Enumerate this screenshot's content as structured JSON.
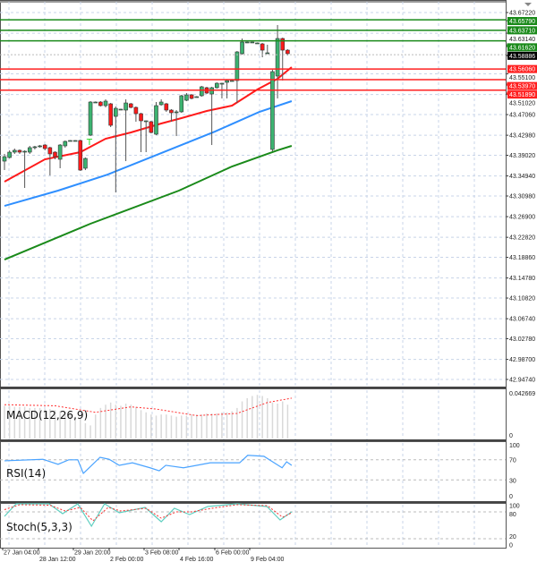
{
  "chart_data": {
    "type": "candlestick",
    "price_axis_labels": [
      "43.67220",
      "43.63140",
      "43.55100",
      "43.51020",
      "43.47060",
      "43.42980",
      "43.39020",
      "43.34940",
      "43.30980",
      "43.26900",
      "43.22820",
      "43.18860",
      "43.14780",
      "43.10820",
      "43.06740",
      "43.02780",
      "42.98700",
      "42.94740"
    ],
    "ylim": [
      42.9474,
      43.6722
    ],
    "time_labels": [
      "27 Jan 04:00",
      "28 Jan 12:00",
      "29 Jan 20:00",
      "2 Feb 00:00",
      "3 Feb 08:00",
      "4 Feb 16:00",
      "6 Feb 00:00",
      "9 Feb 04:00"
    ],
    "candles": [
      [
        43.3787,
        43.3929,
        43.361,
        43.3875
      ],
      [
        43.3858,
        43.4,
        43.384,
        43.3964
      ],
      [
        43.3964,
        43.4035,
        43.3929,
        43.4
      ],
      [
        43.4,
        43.4017,
        43.3929,
        43.3964
      ],
      [
        43.3964,
        43.4,
        43.3257,
        43.3982
      ],
      [
        43.3964,
        43.4088,
        43.3929,
        43.4053
      ],
      [
        43.4053,
        43.4088,
        43.4017,
        43.407
      ],
      [
        43.407,
        43.4105,
        43.4053,
        43.4088
      ],
      [
        43.4105,
        43.4123,
        43.4,
        43.4035
      ],
      [
        43.4053,
        43.407,
        43.3504,
        43.3929
      ],
      [
        43.3964,
        43.3982,
        43.3823,
        43.3875
      ],
      [
        43.3823,
        43.4123,
        43.3646,
        43.4105
      ],
      [
        43.4088,
        43.4194,
        43.4053,
        43.4176
      ],
      [
        43.4194,
        43.42,
        43.4185,
        43.4194
      ],
      [
        43.4194,
        43.42,
        43.4185,
        43.4194
      ],
      [
        43.4194,
        43.4212,
        43.3593,
        43.361
      ],
      [
        43.3646,
        43.3858,
        43.361,
        43.384
      ],
      [
        43.43,
        43.4972,
        43.4282,
        43.4954
      ],
      [
        43.4954,
        43.4965,
        43.4945,
        43.4954
      ],
      [
        43.4954,
        43.4972,
        43.4866,
        43.4883
      ],
      [
        43.4883,
        43.5007,
        43.4848,
        43.4972
      ],
      [
        43.4919,
        43.4936,
        43.4459,
        43.4494
      ],
      [
        43.4671,
        43.4866,
        43.3168,
        43.483
      ],
      [
        43.4813,
        43.482,
        43.48,
        43.4813
      ],
      [
        43.4795,
        43.5007,
        43.3787,
        43.4936
      ],
      [
        43.4919,
        43.4936,
        43.483,
        43.4848
      ],
      [
        43.4848,
        43.4866,
        43.4565,
        43.4724
      ],
      [
        43.4724,
        43.4742,
        43.3964,
        43.4583
      ],
      [
        43.4583,
        43.459,
        43.3964,
        43.4583
      ],
      [
        43.4565,
        43.4583,
        43.4335,
        43.4353
      ],
      [
        43.4318,
        43.4954,
        43.43,
        43.4883
      ],
      [
        43.4901,
        43.5007,
        43.4883,
        43.4954
      ],
      [
        43.4919,
        43.4936,
        43.476,
        43.4795
      ],
      [
        43.4795,
        43.4813,
        43.4565,
        43.4742
      ],
      [
        43.4742,
        43.4795,
        43.4282,
        43.476
      ],
      [
        43.476,
        43.5095,
        43.4742,
        43.5078
      ],
      [
        43.4989,
        43.5131,
        43.4972,
        43.5095
      ],
      [
        43.5095,
        43.5113,
        43.5007,
        43.5025
      ],
      [
        43.506,
        43.507,
        43.505,
        43.506
      ],
      [
        43.5078,
        43.5272,
        43.506,
        43.5255
      ],
      [
        43.5237,
        43.5255,
        43.5113,
        43.5131
      ],
      [
        43.5113,
        43.5255,
        43.4105,
        43.5237
      ],
      [
        43.5237,
        43.5343,
        43.522,
        43.5325
      ],
      [
        43.5325,
        43.5335,
        43.5025,
        43.5325
      ],
      [
        43.5343,
        43.5396,
        43.5025,
        43.5378
      ],
      [
        43.5378,
        43.5385,
        43.537,
        43.5378
      ],
      [
        43.5378,
        43.5962,
        43.4936,
        43.5944
      ],
      [
        43.5909,
        43.6209,
        43.5891,
        43.6139
      ],
      [
        43.6139,
        43.6145,
        43.613,
        43.6139
      ],
      [
        43.6139,
        43.6145,
        43.613,
        43.6139
      ],
      [
        43.6121,
        43.613,
        43.611,
        43.6121
      ],
      [
        43.6103,
        43.6121,
        43.5838,
        43.5979
      ],
      [
        43.5926,
        43.6086,
        43.5909,
        43.5926
      ],
      [
        43.4017,
        43.5591,
        43.3982,
        43.5555
      ],
      [
        43.5467,
        43.6475,
        43.5025,
        43.6209
      ],
      [
        43.6209,
        43.6226,
        43.5378,
        43.5979
      ],
      [
        43.5979,
        43.5997,
        43.5873,
        43.5909
      ]
    ],
    "moving_averages": [
      {
        "color": "#ff1a1a",
        "points": [
          [
            0,
            43.338
          ],
          [
            8,
            43.3822
          ],
          [
            15,
            43.3964
          ],
          [
            20,
            43.4229
          ],
          [
            25,
            43.4353
          ],
          [
            31,
            43.453
          ],
          [
            35,
            43.4636
          ],
          [
            40,
            43.4777
          ],
          [
            45,
            43.4883
          ],
          [
            50,
            43.5202
          ],
          [
            54,
            43.5414
          ],
          [
            56.8,
            43.5644
          ]
        ]
      },
      {
        "color": "#2f8fff",
        "points": [
          [
            0,
            43.2903
          ],
          [
            10.6,
            43.3204
          ],
          [
            20.4,
            43.3522
          ],
          [
            31,
            43.3946
          ],
          [
            41.6,
            43.437
          ],
          [
            50.4,
            43.4759
          ],
          [
            56.8,
            43.4972
          ]
        ]
      },
      {
        "color": "#1a8a1a",
        "points": [
          [
            0,
            43.1842
          ],
          [
            17,
            43.255
          ],
          [
            34.5,
            43.3204
          ],
          [
            45,
            43.3681
          ],
          [
            54,
            43.4
          ],
          [
            56.8,
            43.4088
          ]
        ]
      }
    ],
    "levels": [
      {
        "price": "43.65790",
        "color": "#1a8a1a"
      },
      {
        "price": "43.63710",
        "color": "#1a8a1a"
      },
      {
        "price": "43.61620",
        "color": "#1a8a1a"
      },
      {
        "price": "43.56060",
        "color": "#ff2020"
      },
      {
        "price": "43.53970",
        "color": "#ff2020"
      },
      {
        "price": "43.51890",
        "color": "#ff2020"
      }
    ],
    "current_price": "43.58886",
    "signal_marker": {
      "index": 16.8,
      "price": 43.4176,
      "glyph": "T"
    },
    "macd": {
      "label": "MACD(12,26,9)",
      "max_label": "0.042669",
      "zero_label": "0",
      "max": 0.042669,
      "histogram": [
        0.03,
        0.03,
        0.029,
        0.029,
        0.029,
        0.028,
        0.028,
        0.028,
        0.027,
        0.027,
        0.026,
        0.025,
        0.024,
        0.022,
        0.02,
        0.018,
        0.014,
        0.012,
        0.022,
        0.028,
        0.031,
        0.033,
        0.031,
        0.03,
        0.032,
        0.031,
        0.029,
        0.026,
        0.024,
        0.022,
        0.021,
        0.022,
        0.022,
        0.021,
        0.02,
        0.021,
        0.021,
        0.022,
        0.022,
        0.022,
        0.023,
        0.023,
        0.023,
        0.024,
        0.024,
        0.025,
        0.028,
        0.034,
        0.037,
        0.039,
        0.04,
        0.039,
        0.037,
        0.033,
        0.032,
        0.034,
        0.031
      ],
      "signal": [
        [
          0,
          0.031
        ],
        [
          10,
          0.03
        ],
        [
          18,
          0.024
        ],
        [
          25,
          0.029
        ],
        [
          30,
          0.027
        ],
        [
          38,
          0.021
        ],
        [
          46,
          0.023
        ],
        [
          52,
          0.033
        ],
        [
          56.8,
          0.037
        ]
      ]
    },
    "rsi": {
      "label": "RSI(14)",
      "levels": [
        "100",
        "70",
        "30",
        "0"
      ],
      "points": [
        [
          0,
          68
        ],
        [
          7.6,
          71
        ],
        [
          10.6,
          61
        ],
        [
          12.7,
          70
        ],
        [
          14.5,
          70
        ],
        [
          15.6,
          43
        ],
        [
          18.9,
          75
        ],
        [
          20.7,
          71
        ],
        [
          22.7,
          59
        ],
        [
          25.3,
          64
        ],
        [
          28.8,
          54
        ],
        [
          30.6,
          48
        ],
        [
          31.9,
          59
        ],
        [
          35.4,
          54
        ],
        [
          40.7,
          64
        ],
        [
          46.5,
          64
        ],
        [
          48.1,
          79
        ],
        [
          51.3,
          77
        ],
        [
          54.9,
          54
        ],
        [
          55.8,
          66
        ],
        [
          56.8,
          59
        ]
      ]
    },
    "stoch": {
      "label": "Stoch(5,3,3)",
      "levels": [
        "100",
        "80",
        "20",
        "0"
      ],
      "main": [
        [
          0,
          70
        ],
        [
          2.3,
          98
        ],
        [
          8.8,
          98
        ],
        [
          11.5,
          76
        ],
        [
          14.5,
          98
        ],
        [
          17.2,
          48
        ],
        [
          19.8,
          98
        ],
        [
          22.7,
          78
        ],
        [
          27.8,
          90
        ],
        [
          31,
          58
        ],
        [
          33.6,
          88
        ],
        [
          36.6,
          74
        ],
        [
          40.2,
          92
        ],
        [
          46,
          98
        ],
        [
          51.9,
          92
        ],
        [
          54.5,
          62
        ],
        [
          56.8,
          80
        ]
      ],
      "signal": [
        [
          0,
          85
        ],
        [
          3,
          96
        ],
        [
          9,
          95
        ],
        [
          12,
          82
        ],
        [
          15,
          90
        ],
        [
          17.5,
          60
        ],
        [
          20.5,
          90
        ],
        [
          23,
          82
        ],
        [
          28,
          88
        ],
        [
          31,
          66
        ],
        [
          34,
          80
        ],
        [
          37,
          80
        ],
        [
          41,
          88
        ],
        [
          46,
          96
        ],
        [
          52,
          94
        ],
        [
          55,
          68
        ],
        [
          56.8,
          78
        ]
      ]
    },
    "colors": {
      "bull": "#3cb371",
      "bear": "#ff1a1a",
      "grid": "#c8d4e8",
      "stoch_main": "#5fcfc0",
      "stoch_signal": "#ff3030",
      "rsi": "#4aa3ff",
      "macd_hist": "#d9d9d9",
      "macd_signal": "#ff3030"
    }
  }
}
